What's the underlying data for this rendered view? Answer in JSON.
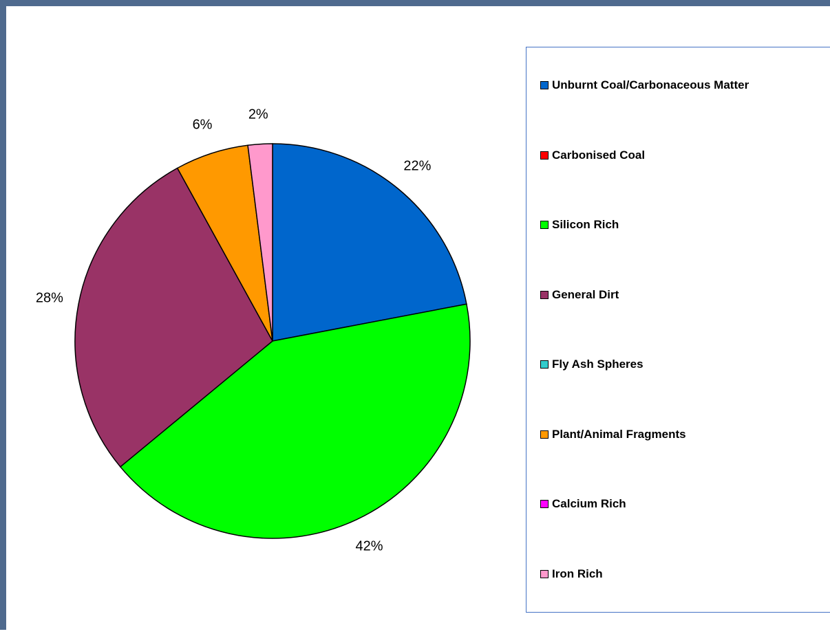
{
  "chart_data": {
    "type": "pie",
    "categories": [
      "Unburnt Coal/Carbonaceous Matter",
      "Carbonised Coal",
      "Silicon Rich",
      "General Dirt",
      "Fly Ash Spheres",
      "Plant/Animal Fragments",
      "Calcium Rich",
      "Iron Rich"
    ],
    "values": [
      22,
      0,
      42,
      28,
      0,
      6,
      0,
      2
    ],
    "value_labels": [
      "22%",
      "",
      "42%",
      "28%",
      "",
      "6%",
      "",
      "2%"
    ],
    "colors": [
      "#0066cc",
      "#ff0000",
      "#00ff00",
      "#993366",
      "#33cccc",
      "#ff9900",
      "#ff00ff",
      "#ff99cc"
    ],
    "legend_position": "right",
    "title": ""
  }
}
